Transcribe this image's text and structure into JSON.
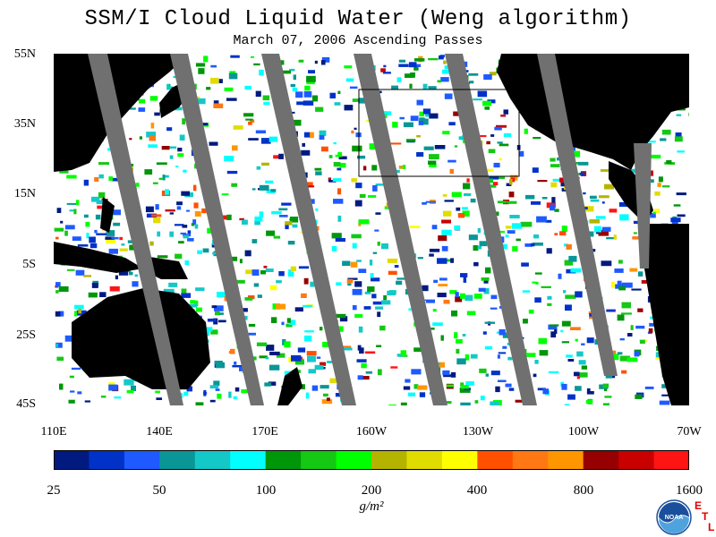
{
  "title": "SSM/I Cloud Liquid Water (Weng algorithm)",
  "subtitle": "March 07, 2006  Ascending Passes",
  "lat_labels": [
    "55N",
    "35N",
    "15N",
    "5S",
    "25S",
    "45S"
  ],
  "lon_labels": [
    "110E",
    "140E",
    "170E",
    "160W",
    "130W",
    "100W",
    "70W"
  ],
  "colorbar": {
    "colors": [
      "#001a80",
      "#0032c8",
      "#1e5aff",
      "#0a9696",
      "#14c8c8",
      "#00ffff",
      "#00960a",
      "#14c814",
      "#00ff00",
      "#b4b400",
      "#e1dc00",
      "#ffff00",
      "#ff5000",
      "#ff7814",
      "#ff9600",
      "#960000",
      "#c80000",
      "#ff1414"
    ],
    "labels": [
      "25",
      "50",
      "100",
      "200",
      "400",
      "800",
      "1600"
    ]
  },
  "units": "g/m²",
  "credits": {
    "org": "NOAA",
    "etl": [
      "E",
      "T",
      "L"
    ]
  },
  "map_colors": {
    "land": "#000000",
    "swath_gap": "#707070",
    "ocean_clear": "#ffffff"
  }
}
